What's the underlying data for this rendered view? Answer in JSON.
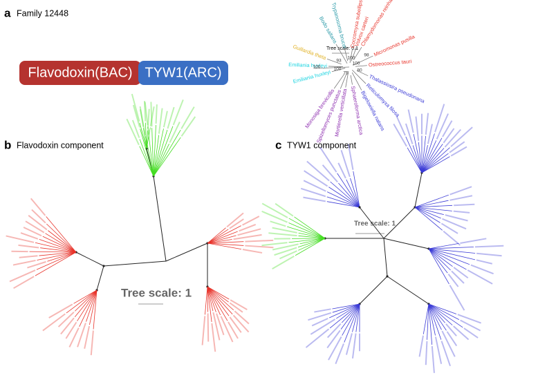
{
  "panel_a": {
    "label": "a",
    "title": "Family 12448",
    "domains": [
      "Flavodoxin(BAC)",
      "TYW1(ARC)"
    ],
    "tree_scale": "Tree scale: 0.1",
    "leaves": [
      {
        "name": "Coccomyxa subellipsoidea",
        "color": "#e8332a"
      },
      {
        "name": "Volvox carteri",
        "color": "#e8332a"
      },
      {
        "name": "Chlamydomonas reinhardtii",
        "color": "#e8332a"
      },
      {
        "name": "Micromonas pusilla",
        "color": "#e8332a"
      },
      {
        "name": "Ostreococcus tauri",
        "color": "#e8332a"
      },
      {
        "name": "Thalassiosira pseudonana",
        "color": "#3b3bd6"
      },
      {
        "name": "Reticulomyxa filosa",
        "color": "#3b3bd6"
      },
      {
        "name": "Bigelowiella natans",
        "color": "#3b3bd6"
      },
      {
        "name": "Sphaeroforma arctica",
        "color": "#8e2fb0"
      },
      {
        "name": "Mortierella verticillata",
        "color": "#8e2fb0"
      },
      {
        "name": "Spizellomyces punctatus",
        "color": "#8e2fb0"
      },
      {
        "name": "Monosiga brevicollis",
        "color": "#8e2fb0"
      },
      {
        "name": "Emiliania huxleyi",
        "color": "#19d3e0"
      },
      {
        "name": "Emiliania huxleyi",
        "color": "#19d3e0"
      },
      {
        "name": "Guillardia theta",
        "color": "#e0b020"
      },
      {
        "name": "Bodo saltans",
        "color": "#2a9aa8"
      },
      {
        "name": "Trypanosoma brucei",
        "color": "#2a9aa8"
      }
    ],
    "support": [
      "100",
      "100",
      "93",
      "100",
      "75",
      "80",
      "100",
      "98"
    ]
  },
  "panel_b": {
    "label": "b",
    "title": "Flavodoxin component",
    "tree_scale": "Tree scale: 1"
  },
  "panel_c": {
    "label": "c",
    "title": "TYW1 component",
    "tree_scale": "Tree scale: 1"
  }
}
